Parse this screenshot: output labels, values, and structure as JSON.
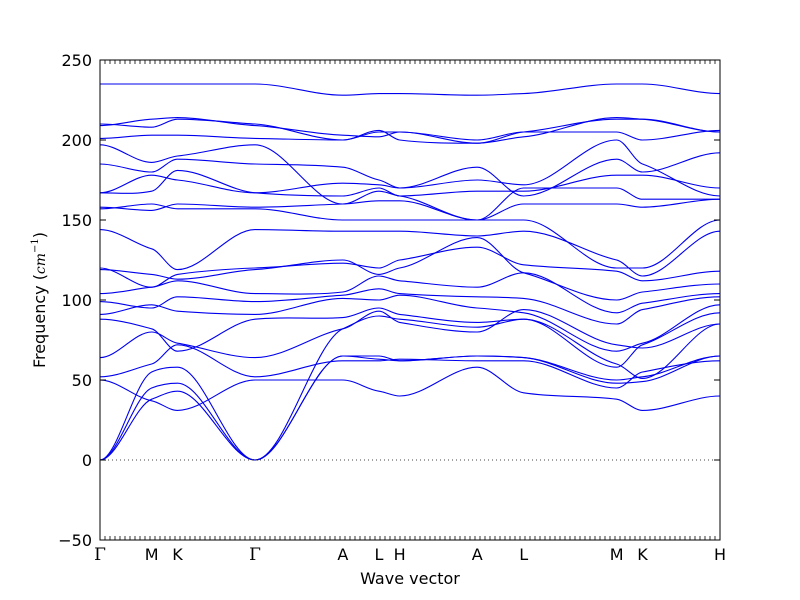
{
  "chart_data": {
    "type": "line",
    "xlabel": "Wave vector",
    "ylabel": {
      "text": "Frequency (",
      "unit_math": "cm",
      "unit_exp": "−1",
      "close": ")"
    },
    "ylim": [
      -50,
      250
    ],
    "yticks": [
      -50,
      0,
      50,
      100,
      150,
      200,
      250
    ],
    "zero_line": true,
    "line_color": "#0000ee",
    "zero_line_color": "#444444",
    "x": [
      0,
      0.5,
      0.75,
      1.5,
      2.35,
      2.7,
      2.9,
      3.65,
      4.1,
      5.0,
      5.25,
      6.0
    ],
    "high_symmetry_points": [
      {
        "label": "Γ",
        "x": 0
      },
      {
        "label": "M",
        "x": 0.5
      },
      {
        "label": "K",
        "x": 0.75
      },
      {
        "label": "Γ",
        "x": 1.5
      },
      {
        "label": "A",
        "x": 2.35
      },
      {
        "label": "L",
        "x": 2.7
      },
      {
        "label": "H",
        "x": 2.9
      },
      {
        "label": "A",
        "x": 3.65
      },
      {
        "label": "L",
        "x": 4.1
      },
      {
        "label": "M",
        "x": 5.0
      },
      {
        "label": "K",
        "x": 5.25
      },
      {
        "label": "H",
        "x": 6.0
      }
    ],
    "series": [
      {
        "values": [
          0,
          38,
          43,
          0,
          65,
          63,
          62,
          65,
          64,
          48,
          49,
          65
        ]
      },
      {
        "values": [
          0,
          45,
          48,
          0,
          65,
          65,
          62,
          65,
          64,
          50,
          52,
          65
        ]
      },
      {
        "values": [
          0,
          55,
          58,
          0,
          82,
          90,
          88,
          83,
          88,
          60,
          51,
          85
        ]
      },
      {
        "values": [
          50,
          37,
          31,
          50,
          50,
          43,
          40,
          58,
          42,
          38,
          31,
          40
        ]
      },
      {
        "values": [
          52,
          60,
          72,
          52,
          62,
          62,
          63,
          62,
          62,
          45,
          55,
          62
        ]
      },
      {
        "values": [
          64,
          80,
          73,
          64,
          82,
          93,
          86,
          80,
          94,
          72,
          70,
          85
        ]
      },
      {
        "values": [
          88,
          82,
          68,
          88,
          89,
          95,
          91,
          86,
          88,
          58,
          72,
          92
        ]
      },
      {
        "values": [
          91,
          97,
          93,
          91,
          101,
          100,
          103,
          95,
          92,
          68,
          73,
          97
        ]
      },
      {
        "values": [
          99,
          95,
          102,
          99,
          103,
          107,
          104,
          102,
          101,
          85,
          94,
          102
        ]
      },
      {
        "values": [
          104,
          108,
          112,
          104,
          105,
          115,
          112,
          108,
          117,
          92,
          98,
          104
        ]
      },
      {
        "values": [
          119,
          116,
          113,
          119,
          125,
          116,
          120,
          139,
          117,
          100,
          105,
          110
        ]
      },
      {
        "values": [
          120,
          108,
          116,
          120,
          123,
          120,
          125,
          133,
          122,
          118,
          112,
          118
        ]
      },
      {
        "values": [
          144,
          132,
          119,
          144,
          143,
          143,
          143,
          140,
          143,
          125,
          115,
          143
        ]
      },
      {
        "values": [
          157,
          160,
          157,
          157,
          150,
          150,
          150,
          150,
          150,
          120,
          120,
          150
        ]
      },
      {
        "values": [
          158,
          156,
          160,
          158,
          160,
          162,
          162,
          150,
          160,
          160,
          158,
          163
        ]
      },
      {
        "values": [
          167,
          178,
          175,
          167,
          173,
          172,
          170,
          175,
          172,
          200,
          185,
          165
        ]
      },
      {
        "values": [
          167,
          168,
          181,
          167,
          165,
          170,
          165,
          168,
          168,
          178,
          178,
          170
        ]
      },
      {
        "values": [
          185,
          180,
          188,
          185,
          183,
          175,
          170,
          183,
          165,
          188,
          180,
          192
        ]
      },
      {
        "values": [
          197,
          186,
          190,
          197,
          160,
          168,
          165,
          150,
          170,
          170,
          163,
          163
        ]
      },
      {
        "values": [
          201,
          203,
          203,
          201,
          200,
          205,
          205,
          200,
          205,
          205,
          200,
          206
        ]
      },
      {
        "values": [
          209,
          213,
          214,
          209,
          203,
          202,
          205,
          198,
          205,
          213,
          213,
          205
        ]
      },
      {
        "values": [
          210,
          208,
          213,
          210,
          200,
          206,
          200,
          198,
          202,
          214,
          213,
          205
        ]
      },
      {
        "values": [
          235,
          235,
          235,
          235,
          228,
          229,
          229,
          228,
          229,
          235,
          235,
          229
        ]
      }
    ]
  }
}
